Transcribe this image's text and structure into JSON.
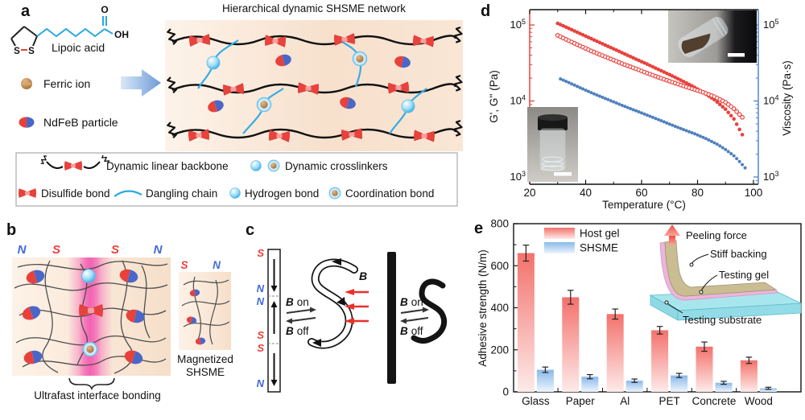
{
  "panel_labels": {
    "a": "a",
    "b": "b",
    "c": "c",
    "d": "d",
    "e": "e"
  },
  "panel_a": {
    "molecule": {
      "name": "Lipoic acid",
      "o": "O",
      "oh": "OH",
      "s_left": "S",
      "s_right": "S"
    },
    "ferric_label": "Ferric ion",
    "ndfeb_label": "NdFeB particle",
    "network_title": "Hierarchical dynamic SHSME network",
    "legend": {
      "backbone": "Dynamic linear backbone",
      "crosslinkers": "Dynamic crosslinkers",
      "disulfide": "Disulfide bond",
      "dangling": "Dangling chain",
      "hydrogen": "Hydrogen bond",
      "coordination": "Coordination bond"
    }
  },
  "panel_b": {
    "poles_top": [
      "N",
      "S",
      "S",
      "N"
    ],
    "poles_small": [
      "S",
      "N"
    ],
    "magnetized_line1": "Magnetized",
    "magnetized_line2": "SHSME",
    "caption": "Ultrafast interface bonding"
  },
  "panel_c": {
    "left_poles": [
      "S",
      "N",
      "N",
      "S",
      "S",
      "N"
    ],
    "b_symbol": "B",
    "on_word": "on",
    "off_word": "off",
    "field_symbol": "B"
  },
  "chart_data": [
    {
      "id": "rheology",
      "type": "scatter",
      "title": "",
      "xlabel": "Temperature (°C)",
      "ylabel_left": "G', G'' (Pa)",
      "ylabel_right": "Viscosity (Pa·s)",
      "x_ticks": [
        20,
        40,
        60,
        80,
        100
      ],
      "x_minor_ticks": [
        30,
        50,
        70,
        90
      ],
      "xlim": [
        19,
        102
      ],
      "ylog": true,
      "ylim": [
        800,
        159000
      ],
      "y_ticks_exponents": [
        3,
        4,
        5
      ],
      "axis_color_left": "#e8423d",
      "axis_color_right": "#4f86c9",
      "legend_position": "none",
      "grid": false,
      "series": [
        {
          "name": "G-prime storage modulus",
          "marker": "filled",
          "color": "#e8423d",
          "axis": "left",
          "points": [
            [
              30,
              105000
            ],
            [
              34,
              90000
            ],
            [
              38,
              77000
            ],
            [
              42,
              66000
            ],
            [
              46,
              56500
            ],
            [
              50,
              48500
            ],
            [
              54,
              41500
            ],
            [
              58,
              35500
            ],
            [
              62,
              30500
            ],
            [
              66,
              26000
            ],
            [
              70,
              22200
            ],
            [
              74,
              18800
            ],
            [
              78,
              15800
            ],
            [
              82,
              13000
            ],
            [
              86,
              10400
            ],
            [
              90,
              7800
            ],
            [
              93,
              5800
            ],
            [
              96,
              3600
            ]
          ]
        },
        {
          "name": "G-double-prime loss modulus",
          "marker": "open",
          "color": "#e8423d",
          "axis": "left",
          "points": [
            [
              30,
              73000
            ],
            [
              34,
              62000
            ],
            [
              38,
              53000
            ],
            [
              42,
              45500
            ],
            [
              46,
              39500
            ],
            [
              50,
              34500
            ],
            [
              54,
              30000
            ],
            [
              58,
              26500
            ],
            [
              62,
              23200
            ],
            [
              66,
              20500
            ],
            [
              70,
              18200
            ],
            [
              74,
              16200
            ],
            [
              78,
              14500
            ],
            [
              82,
              13000
            ],
            [
              86,
              11400
            ],
            [
              90,
              9600
            ],
            [
              93,
              7900
            ],
            [
              96,
              6100
            ]
          ]
        },
        {
          "name": "Viscosity",
          "marker": "filled",
          "color": "#4f81bd",
          "axis": "right",
          "points": [
            [
              31,
              19500
            ],
            [
              35,
              16800
            ],
            [
              39,
              14400
            ],
            [
              43,
              12400
            ],
            [
              47,
              10800
            ],
            [
              51,
              9400
            ],
            [
              55,
              8200
            ],
            [
              59,
              7200
            ],
            [
              63,
              6300
            ],
            [
              67,
              5500
            ],
            [
              71,
              4800
            ],
            [
              75,
              4200
            ],
            [
              79,
              3700
            ],
            [
              83,
              3200
            ],
            [
              87,
              2700
            ],
            [
              90,
              2300
            ],
            [
              93,
              1900
            ],
            [
              95,
              1600
            ],
            [
              97,
              1320
            ]
          ]
        }
      ]
    },
    {
      "id": "adhesion",
      "type": "bar",
      "title": "",
      "categories": [
        "Glass",
        "Paper",
        "Al",
        "PET",
        "Concrete",
        "Wood"
      ],
      "ylabel": "Adhesive strength (N/m)",
      "ylim": [
        0,
        800
      ],
      "y_ticks": [
        0,
        200,
        400,
        600,
        800
      ],
      "grid": false,
      "legend_position": "top-left",
      "series": [
        {
          "name": "Host gel",
          "values": [
            660,
            450,
            370,
            293,
            215,
            150
          ],
          "errors": [
            38,
            33,
            24,
            18,
            22,
            15
          ],
          "color_top": "#f3716c",
          "color_bottom": "#fdebe9"
        },
        {
          "name": "SHSME",
          "values": [
            105,
            72,
            53,
            78,
            43,
            17
          ],
          "errors": [
            13,
            10,
            8,
            10,
            7,
            5
          ],
          "color_top": "#8ab9e9",
          "color_bottom": "#eef5fd"
        }
      ],
      "inset_labels": {
        "force": "Peeling force",
        "backing": "Stiff backing",
        "gel": "Testing gel",
        "substrate": "Testing substrate"
      }
    }
  ]
}
